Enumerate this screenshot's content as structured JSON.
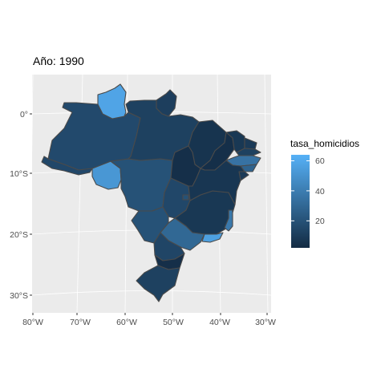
{
  "title": "Año: 1990",
  "axes": {
    "x_ticks": [
      "80°W",
      "70°W",
      "60°W",
      "50°W",
      "40°W",
      "30°W"
    ],
    "y_ticks": [
      "0°",
      "10°S",
      "20°S",
      "30°S"
    ]
  },
  "legend": {
    "title": "tasa_homicidios",
    "ticks": [
      "60",
      "40",
      "20"
    ],
    "range": [
      2,
      64
    ],
    "tick_values": [
      60,
      40,
      20
    ],
    "color_low": "#132b43",
    "color_high": "#56b1f7",
    "placement": "right"
  },
  "colors": {
    "panel_background": "#ebebeb",
    "gridline": "#ffffff",
    "state_border": "#4a4a4a"
  },
  "map_data": {
    "variable": "tasa_homicidios",
    "regions": [
      {
        "id": "RR",
        "value": 58
      },
      {
        "id": "AP",
        "value": 11
      },
      {
        "id": "AM",
        "value": 16
      },
      {
        "id": "PA",
        "value": 12
      },
      {
        "id": "MA",
        "value": 6
      },
      {
        "id": "PI",
        "value": 4
      },
      {
        "id": "CE",
        "value": 8
      },
      {
        "id": "RN",
        "value": 9
      },
      {
        "id": "PB",
        "value": 12
      },
      {
        "id": "PE",
        "value": 35
      },
      {
        "id": "AL",
        "value": 28
      },
      {
        "id": "SE",
        "value": 9
      },
      {
        "id": "BA",
        "value": 7
      },
      {
        "id": "TO",
        "value": 4
      },
      {
        "id": "AC",
        "value": 15
      },
      {
        "id": "RO",
        "value": 52
      },
      {
        "id": "MT",
        "value": 20
      },
      {
        "id": "GO",
        "value": 15
      },
      {
        "id": "DF",
        "value": 20
      },
      {
        "id": "MS",
        "value": 20
      },
      {
        "id": "MG",
        "value": 8
      },
      {
        "id": "ES",
        "value": 38
      },
      {
        "id": "RJ",
        "value": 56
      },
      {
        "id": "SP",
        "value": 30
      },
      {
        "id": "PR",
        "value": 14
      },
      {
        "id": "SC",
        "value": 4
      },
      {
        "id": "RS",
        "value": 12
      }
    ]
  }
}
